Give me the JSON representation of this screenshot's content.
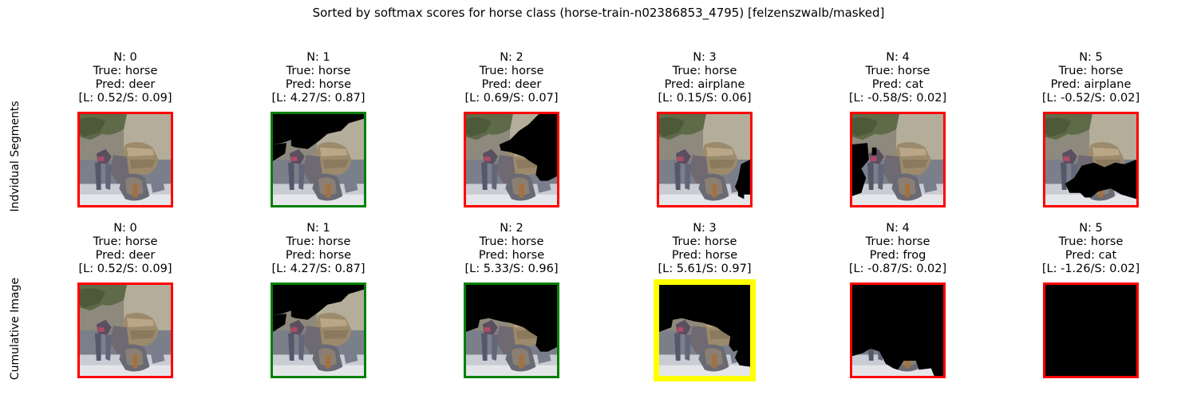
{
  "title": "Sorted by softmax scores for horse class (horse-train-n02386853_4795) [felzenszwalb/masked]",
  "colors": {
    "red": "#ff0000",
    "green": "#008000",
    "yellow": "#ffff00",
    "mask": "#000000"
  },
  "rows": [
    {
      "label": "Indvidual Segments",
      "panels": [
        {
          "n": "N: 0",
          "true": "True: horse",
          "pred": "Pred: deer",
          "scores": "[L: 0.52/S: 0.09]",
          "logit": 0.52,
          "softmax": 0.09,
          "frame": "red",
          "mask": "none"
        },
        {
          "n": "N: 1",
          "true": "True: horse",
          "pred": "Pred: horse",
          "scores": "[L: 4.27/S: 0.87]",
          "logit": 4.27,
          "softmax": 0.87,
          "frame": "green",
          "mask": "ind1"
        },
        {
          "n": "N: 2",
          "true": "True: horse",
          "pred": "Pred: deer",
          "scores": "[L: 0.69/S: 0.07]",
          "logit": 0.69,
          "softmax": 0.07,
          "frame": "red",
          "mask": "ind2"
        },
        {
          "n": "N: 3",
          "true": "True: horse",
          "pred": "Pred: airplane",
          "scores": "[L: 0.15/S: 0.06]",
          "logit": 0.15,
          "softmax": 0.06,
          "frame": "red",
          "mask": "ind3"
        },
        {
          "n": "N: 4",
          "true": "True: horse",
          "pred": "Pred: cat",
          "scores": "[L: -0.58/S: 0.02]",
          "logit": -0.58,
          "softmax": 0.02,
          "frame": "red",
          "mask": "ind4"
        },
        {
          "n": "N: 5",
          "true": "True: horse",
          "pred": "Pred: airplane",
          "scores": "[L: -0.52/S: 0.02]",
          "logit": -0.52,
          "softmax": 0.02,
          "frame": "red",
          "mask": "ind5"
        }
      ]
    },
    {
      "label": "Cumulative Image",
      "panels": [
        {
          "n": "N: 0",
          "true": "True: horse",
          "pred": "Pred: deer",
          "scores": "[L: 0.52/S: 0.09]",
          "logit": 0.52,
          "softmax": 0.09,
          "frame": "red",
          "mask": "none"
        },
        {
          "n": "N: 1",
          "true": "True: horse",
          "pred": "Pred: horse",
          "scores": "[L: 4.27/S: 0.87]",
          "logit": 4.27,
          "softmax": 0.87,
          "frame": "green",
          "mask": "cum1"
        },
        {
          "n": "N: 2",
          "true": "True: horse",
          "pred": "Pred: horse",
          "scores": "[L: 5.33/S: 0.96]",
          "logit": 5.33,
          "softmax": 0.96,
          "frame": "green",
          "mask": "cum2"
        },
        {
          "n": "N: 3",
          "true": "True: horse",
          "pred": "Pred: horse",
          "scores": "[L: 5.61/S: 0.97]",
          "logit": 5.61,
          "softmax": 0.97,
          "frame": "yellow",
          "mask": "cum3"
        },
        {
          "n": "N: 4",
          "true": "True: horse",
          "pred": "Pred: frog",
          "scores": "[L: -0.87/S: 0.02]",
          "logit": -0.87,
          "softmax": 0.02,
          "frame": "red",
          "mask": "cum4"
        },
        {
          "n": "N: 5",
          "true": "True: horse",
          "pred": "Pred: cat",
          "scores": "[L: -1.26/S: 0.02]",
          "logit": -1.26,
          "softmax": 0.02,
          "frame": "red",
          "mask": "full"
        }
      ]
    }
  ],
  "chart_data": {
    "type": "table",
    "title": "Sorted by softmax scores for horse class (horse-train-n02386853_4795) [felzenszwalb/masked]",
    "columns": [
      "N: 0",
      "N: 1",
      "N: 2",
      "N: 3",
      "N: 4",
      "N: 5"
    ],
    "series": [
      {
        "name": "Indvidual Segments",
        "pred": [
          "deer",
          "horse",
          "deer",
          "airplane",
          "cat",
          "airplane"
        ],
        "logit": [
          0.52,
          4.27,
          0.69,
          0.15,
          -0.58,
          -0.52
        ],
        "softmax": [
          0.09,
          0.87,
          0.07,
          0.06,
          0.02,
          0.02
        ]
      },
      {
        "name": "Cumulative Image",
        "pred": [
          "deer",
          "horse",
          "horse",
          "horse",
          "frog",
          "cat"
        ],
        "logit": [
          0.52,
          4.27,
          5.33,
          5.61,
          -0.87,
          -1.26
        ],
        "softmax": [
          0.09,
          0.87,
          0.96,
          0.97,
          0.02,
          0.02
        ]
      }
    ]
  }
}
